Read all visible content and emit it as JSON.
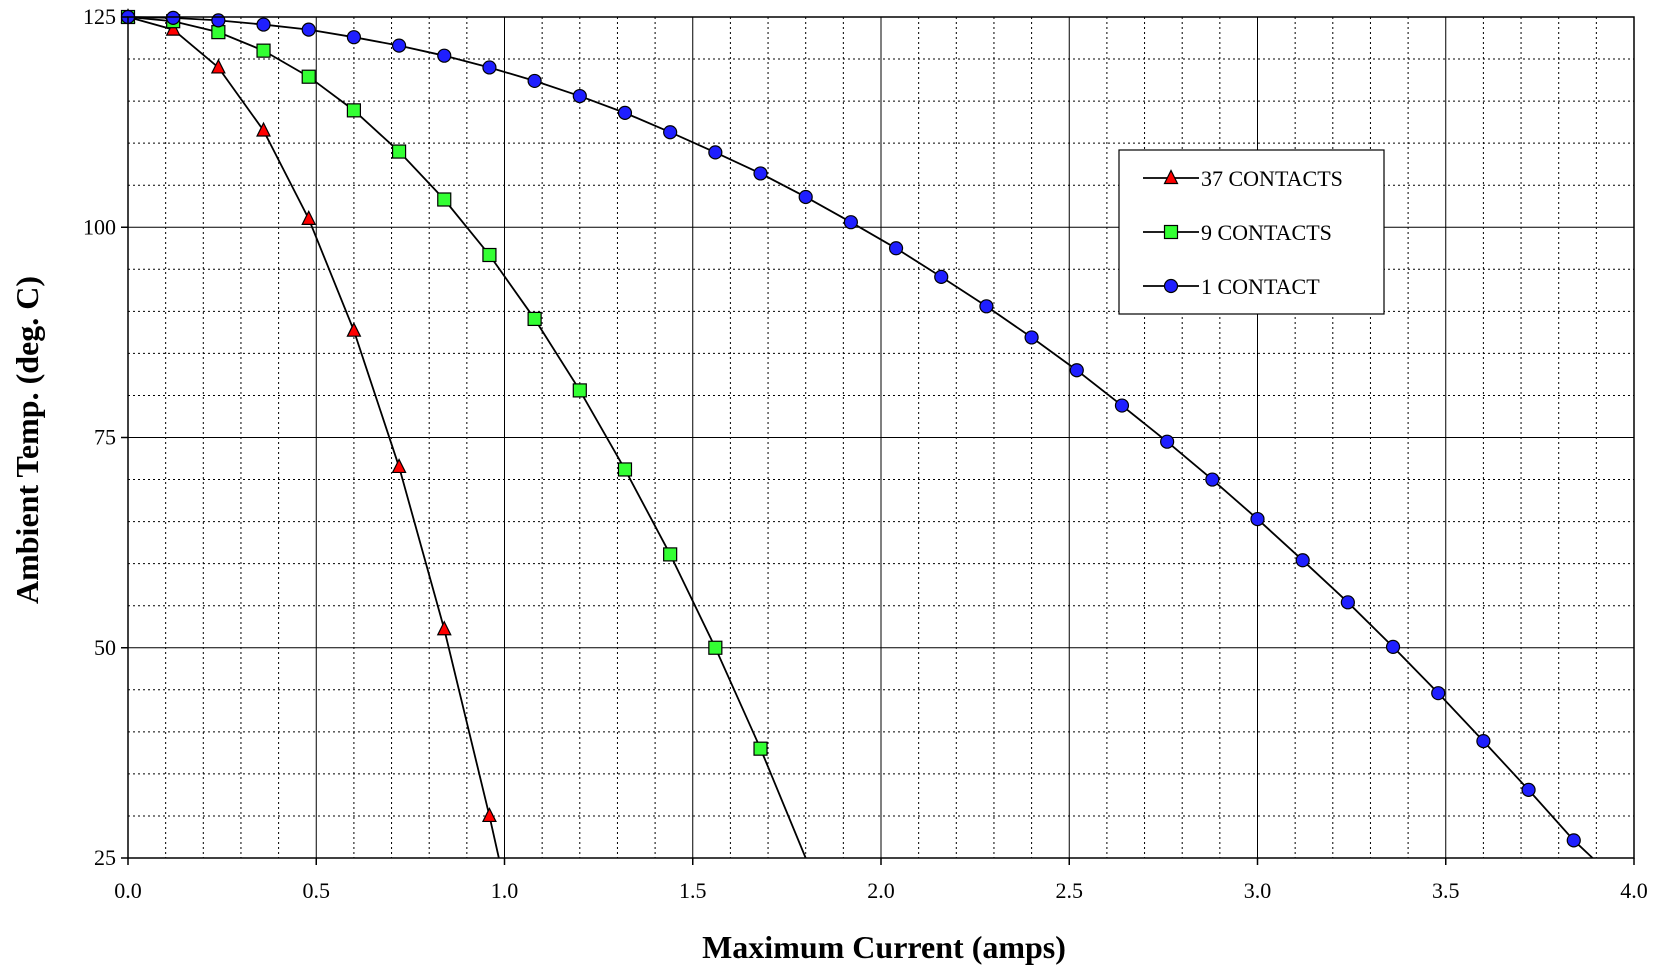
{
  "chart_data": {
    "type": "line",
    "title": "",
    "xlabel": "Maximum Current (amps)",
    "ylabel": "Ambient Temp. (deg. C)",
    "xlim": [
      0.0,
      4.0
    ],
    "ylim": [
      25,
      125
    ],
    "x_ticks": [
      "0.0",
      "0.5",
      "1.0",
      "1.5",
      "2.0",
      "2.5",
      "3.0",
      "3.5",
      "4.0"
    ],
    "y_ticks": [
      "25",
      "50",
      "75",
      "100",
      "125"
    ],
    "grid": "major solid, minor dotted",
    "legend_position": "upper-right",
    "series": [
      {
        "name": "37 CONTACTS",
        "marker": "triangle",
        "color": "#ff0000",
        "x": [
          0.0,
          0.12,
          0.24,
          0.36,
          0.48,
          0.6,
          0.72,
          0.84,
          0.96,
          0.985
        ],
        "y": [
          125.0,
          123.5,
          119.0,
          111.5,
          101.0,
          87.7,
          71.5,
          52.2,
          30.0,
          25.0
        ],
        "marker_count": 9
      },
      {
        "name": "9 CONTACTS",
        "marker": "square",
        "color": "#33ff33",
        "x": [
          0.0,
          0.12,
          0.24,
          0.36,
          0.48,
          0.6,
          0.72,
          0.84,
          0.96,
          1.08,
          1.2,
          1.32,
          1.44,
          1.56,
          1.68,
          1.8
        ],
        "y": [
          125.0,
          124.5,
          123.2,
          121.0,
          117.9,
          113.9,
          109.0,
          103.3,
          96.7,
          89.1,
          80.6,
          71.2,
          61.1,
          50.0,
          38.0,
          25.0
        ],
        "marker_count": 15
      },
      {
        "name": "1 CONTACT",
        "marker": "circle",
        "color": "#1f1fff",
        "x": [
          0.0,
          0.12,
          0.24,
          0.36,
          0.48,
          0.6,
          0.72,
          0.84,
          0.96,
          1.08,
          1.2,
          1.32,
          1.44,
          1.56,
          1.68,
          1.8,
          1.92,
          2.04,
          2.16,
          2.28,
          2.4,
          2.52,
          2.64,
          2.76,
          2.88,
          3.0,
          3.12,
          3.24,
          3.36,
          3.48,
          3.6,
          3.72,
          3.84,
          3.89
        ],
        "y": [
          125.0,
          124.9,
          124.6,
          124.1,
          123.5,
          122.6,
          121.6,
          120.4,
          119.0,
          117.4,
          115.6,
          113.6,
          111.3,
          108.9,
          106.4,
          103.6,
          100.6,
          97.5,
          94.1,
          90.6,
          86.9,
          83.0,
          78.8,
          74.5,
          70.0,
          65.3,
          60.4,
          55.4,
          50.1,
          44.6,
          38.9,
          33.1,
          27.1,
          25.0
        ],
        "marker_count": 33
      }
    ]
  }
}
